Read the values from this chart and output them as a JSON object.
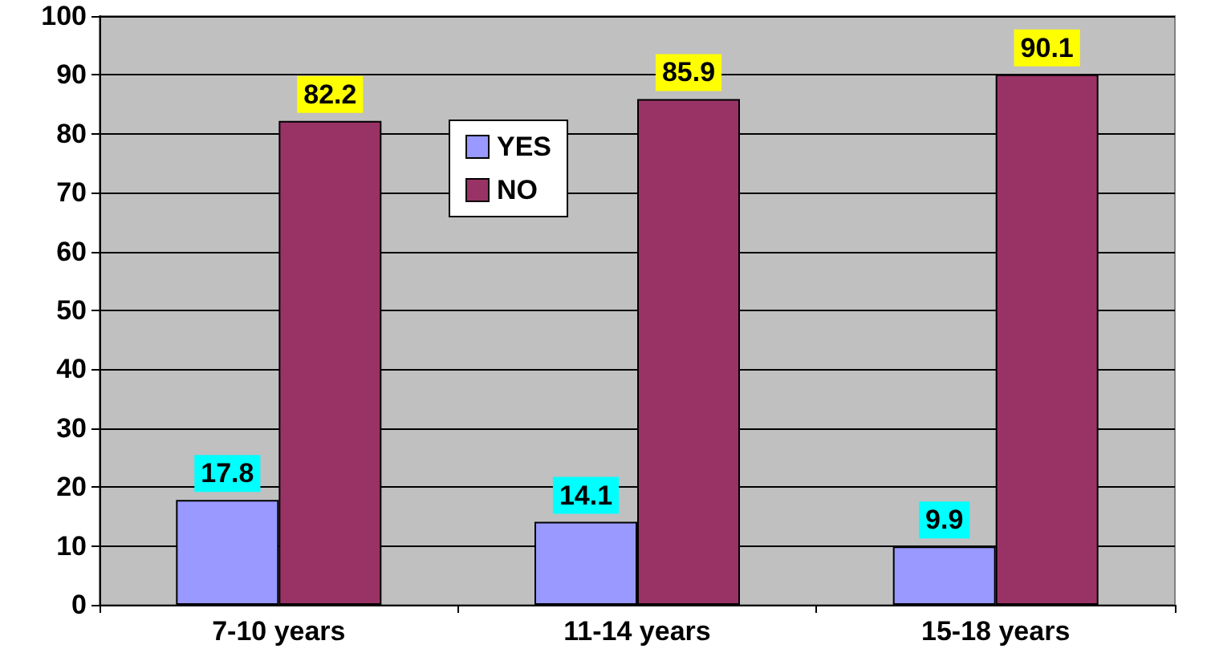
{
  "chart_data": {
    "type": "bar",
    "categories": [
      "7-10 years",
      "11-14 years",
      "15-18 years"
    ],
    "series": [
      {
        "name": "YES",
        "color": "#9999ff",
        "values": [
          17.8,
          14.1,
          9.9
        ]
      },
      {
        "name": "NO",
        "color": "#993366",
        "values": [
          82.2,
          85.9,
          90.1
        ]
      }
    ],
    "ylim": [
      0,
      100
    ],
    "yticks": [
      0,
      10,
      20,
      30,
      40,
      50,
      60,
      70,
      80,
      90,
      100
    ],
    "grid": "y",
    "legend": "top",
    "data_labels": true
  }
}
